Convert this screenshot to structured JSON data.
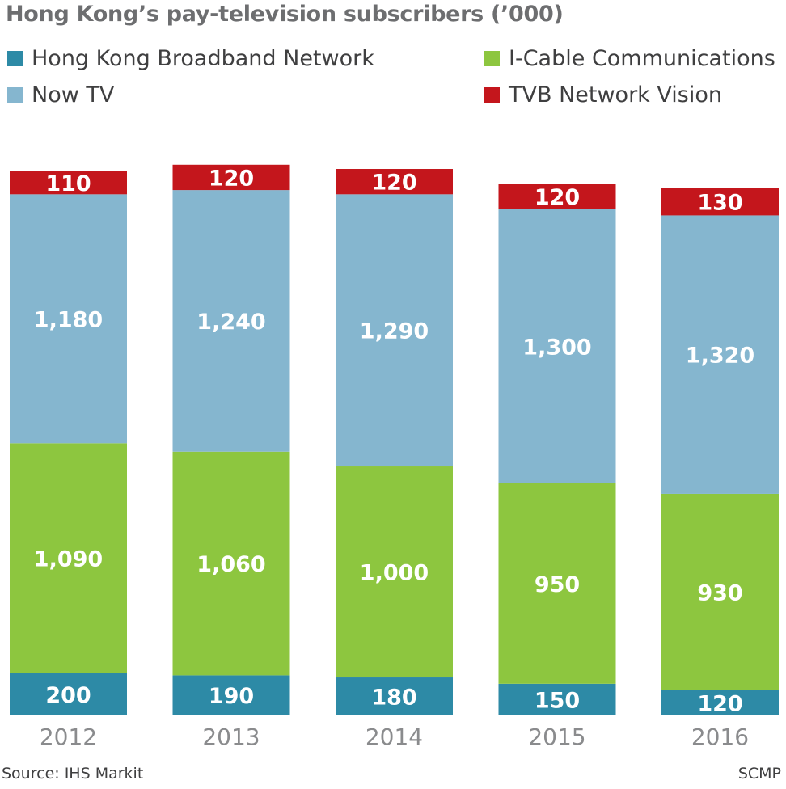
{
  "colors": {
    "hkbn": "#2d8aa6",
    "icable": "#8dc63f",
    "nowtv": "#85b6cf",
    "tvb": "#c4161c"
  },
  "chart_data": {
    "type": "bar",
    "stacked": true,
    "title": "Hong Kong’s pay-television subscribers (’000)",
    "categories": [
      "2012",
      "2013",
      "2014",
      "2015",
      "2016"
    ],
    "series": [
      {
        "name": "Hong Kong Broadband Network",
        "key": "hkbn",
        "values": [
          200,
          190,
          180,
          150,
          120
        ],
        "labels": [
          "200",
          "190",
          "180",
          "150",
          "120"
        ]
      },
      {
        "name": "I-Cable Communications",
        "key": "icable",
        "values": [
          1090,
          1060,
          1000,
          950,
          930
        ],
        "labels": [
          "1,090",
          "1,060",
          "1,000",
          "950",
          "930"
        ]
      },
      {
        "name": "Now TV",
        "key": "nowtv",
        "values": [
          1180,
          1240,
          1290,
          1300,
          1320
        ],
        "labels": [
          "1,180",
          "1,240",
          "1,290",
          "1,300",
          "1,320"
        ]
      },
      {
        "name": "TVB Network Vision",
        "key": "tvb",
        "values": [
          110,
          120,
          120,
          120,
          130
        ],
        "labels": [
          "110",
          "120",
          "120",
          "120",
          "130"
        ]
      }
    ],
    "legend_position": "top",
    "grid": false,
    "yaxis_visible": false,
    "ylim": [
      0,
      2600
    ]
  },
  "footer": {
    "source": "Source: IHS Markit",
    "credit": "SCMP"
  }
}
